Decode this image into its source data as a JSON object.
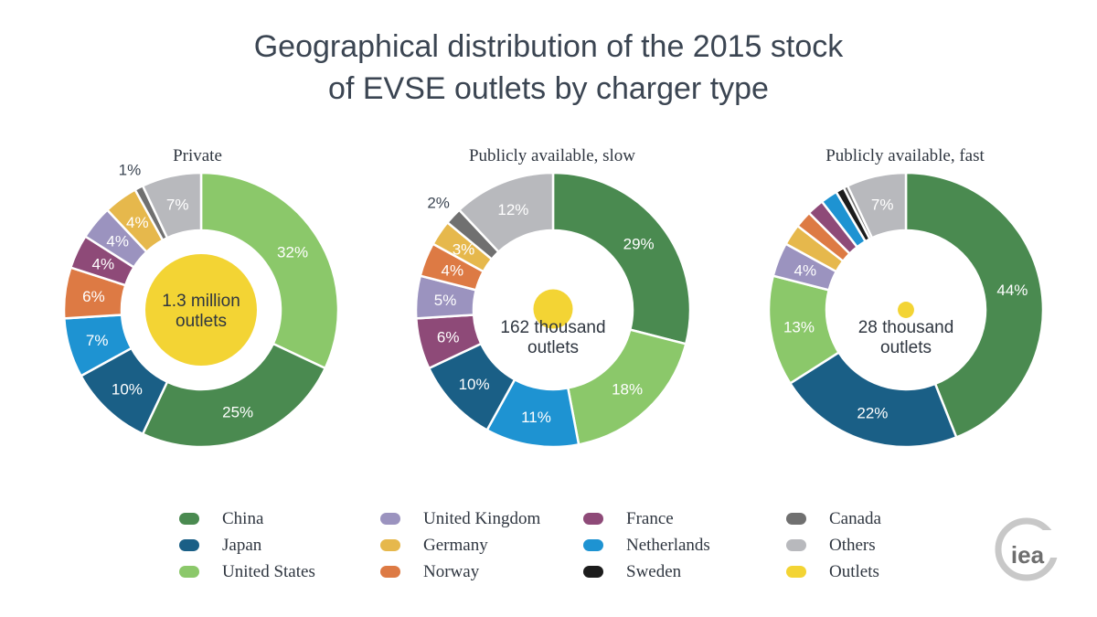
{
  "title_lines": [
    "Geographical distribution of the 2015 stock",
    "of EVSE outlets by charger type"
  ],
  "colors": {
    "China": "#4a8a50",
    "Japan": "#1a5f86",
    "United States": "#8bc86a",
    "United Kingdom": "#9b93bf",
    "Germany": "#e6b84c",
    "Norway": "#dd7a44",
    "France": "#8e4a78",
    "Netherlands": "#1e93d2",
    "Sweden": "#1c1c1c",
    "Canada": "#707070",
    "Others": "#b8b9bd",
    "Outlets": "#f3d434"
  },
  "chart_data": [
    {
      "type": "pie",
      "title": "Private",
      "center_label": [
        "1.3 million",
        "outlets"
      ],
      "outlets": 1300000,
      "slices": [
        {
          "name": "United States",
          "value": 32,
          "label": "32%"
        },
        {
          "name": "China",
          "value": 25,
          "label": "25%"
        },
        {
          "name": "Japan",
          "value": 10,
          "label": "10%"
        },
        {
          "name": "Netherlands",
          "value": 7,
          "label": "7%"
        },
        {
          "name": "Norway",
          "value": 6,
          "label": "6%"
        },
        {
          "name": "France",
          "value": 4,
          "label": "4%"
        },
        {
          "name": "United Kingdom",
          "value": 4,
          "label": "4%"
        },
        {
          "name": "Germany",
          "value": 4,
          "label": "4%"
        },
        {
          "name": "Canada",
          "value": 1,
          "label": "1%"
        },
        {
          "name": "Others",
          "value": 7,
          "label": "7%"
        }
      ]
    },
    {
      "type": "pie",
      "title": "Publicly available, slow",
      "center_label": [
        "162 thousand",
        "outlets"
      ],
      "outlets": 162000,
      "slices": [
        {
          "name": "China",
          "value": 29,
          "label": "29%"
        },
        {
          "name": "United States",
          "value": 18,
          "label": "18%"
        },
        {
          "name": "Netherlands",
          "value": 11,
          "label": "11%"
        },
        {
          "name": "Japan",
          "value": 10,
          "label": "10%"
        },
        {
          "name": "France",
          "value": 6,
          "label": "6%"
        },
        {
          "name": "United Kingdom",
          "value": 5,
          "label": "5%"
        },
        {
          "name": "Norway",
          "value": 4,
          "label": "4%"
        },
        {
          "name": "Germany",
          "value": 3,
          "label": "3%"
        },
        {
          "name": "Canada",
          "value": 2,
          "label": "2%"
        },
        {
          "name": "Others",
          "value": 12,
          "label": "12%"
        }
      ]
    },
    {
      "type": "pie",
      "title": "Publicly available, fast",
      "center_label": [
        "28 thousand",
        "outlets"
      ],
      "outlets": 28000,
      "slices": [
        {
          "name": "China",
          "value": 44,
          "label": "44%"
        },
        {
          "name": "Japan",
          "value": 22,
          "label": "22%"
        },
        {
          "name": "United States",
          "value": 13,
          "label": "13%"
        },
        {
          "name": "United Kingdom",
          "value": 4,
          "label": "4%"
        },
        {
          "name": "Germany",
          "value": 2.5,
          "label": ""
        },
        {
          "name": "Norway",
          "value": 2,
          "label": ""
        },
        {
          "name": "France",
          "value": 2,
          "label": ""
        },
        {
          "name": "Netherlands",
          "value": 2,
          "label": ""
        },
        {
          "name": "Sweden",
          "value": 1,
          "label": ""
        },
        {
          "name": "Canada",
          "value": 0.5,
          "label": ""
        },
        {
          "name": "Others",
          "value": 7,
          "label": "7%"
        }
      ]
    }
  ],
  "legend": [
    [
      "China",
      "Japan",
      "United States"
    ],
    [
      "United Kingdom",
      "Germany",
      "Norway"
    ],
    [
      "France",
      "Netherlands",
      "Sweden"
    ],
    [
      "Canada",
      "Others",
      "Outlets"
    ]
  ],
  "logo_text": "iea"
}
